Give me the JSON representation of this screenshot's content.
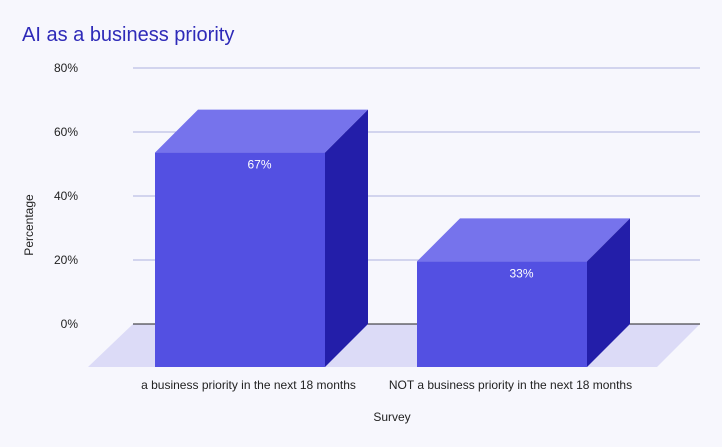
{
  "chart_data": {
    "type": "bar",
    "title": "AI as a business priority",
    "xlabel": "Survey",
    "ylabel": "Percentage",
    "categories": [
      "a business priority in the next 18 months",
      "NOT a business priority in the next 18 months"
    ],
    "values": [
      67,
      33
    ],
    "data_labels": [
      "67%",
      "33%"
    ],
    "y_ticks": [
      "80%",
      "60%",
      "40%",
      "20%",
      "0%"
    ],
    "y_tick_values": [
      80,
      60,
      40,
      20,
      0
    ],
    "ylim": [
      0,
      80
    ],
    "grid": true,
    "legend": "none",
    "style": "3d-column"
  },
  "colors": {
    "title": "#2e2ab8",
    "bar_front": "#5350e2",
    "bar_top": "#7673ec",
    "bar_side": "#231ea9",
    "floor": "#dcdbf7",
    "gridline": "#aeb0e0",
    "baseline": "#222222",
    "background": "#f7f7fd"
  }
}
